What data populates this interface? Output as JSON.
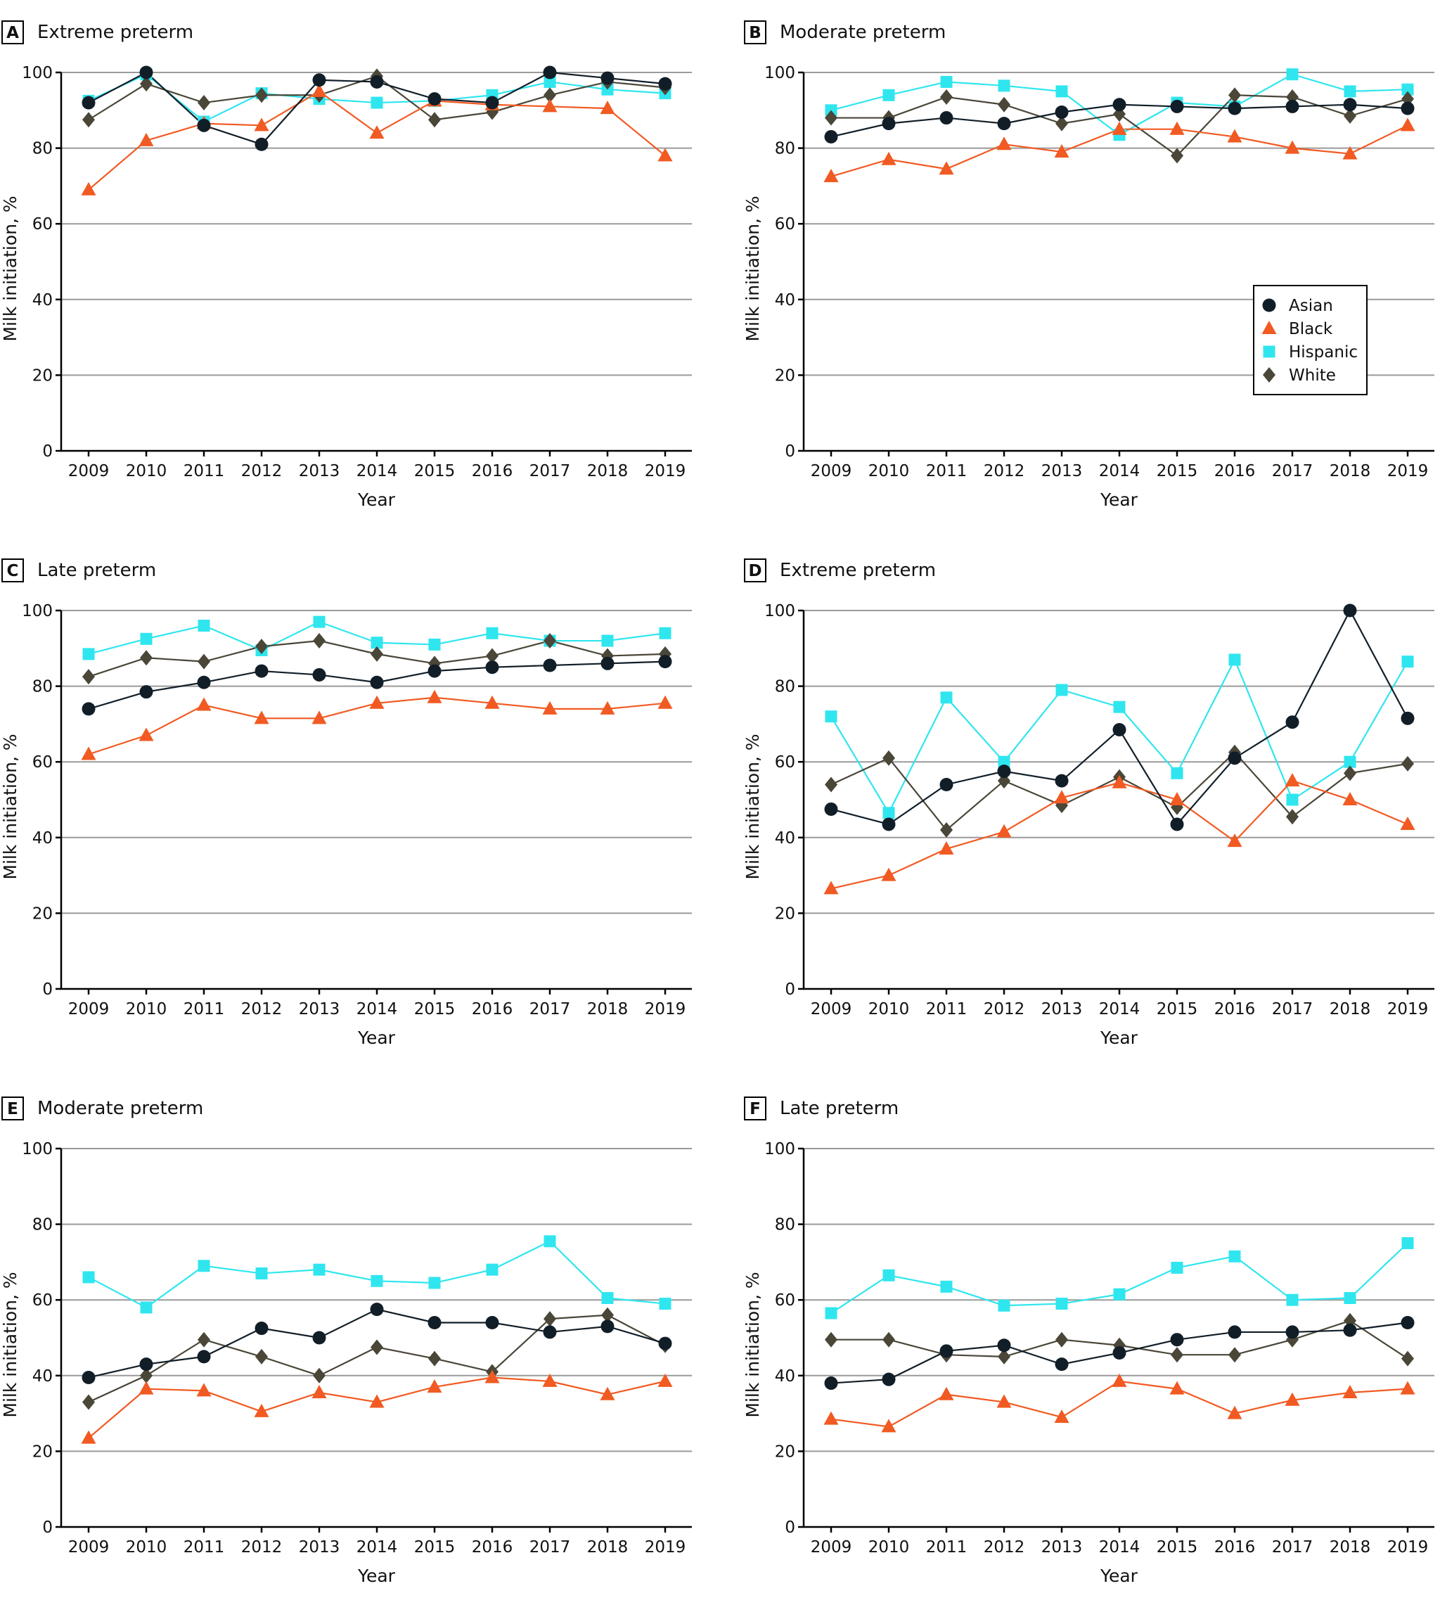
{
  "chart_data": [
    {
      "panel": "A",
      "title": "Extreme preterm",
      "type": "line",
      "xlabel": "Year",
      "ylabel": "Milk initiation, %",
      "ylim": [
        0,
        100
      ],
      "yticks": [
        0,
        20,
        40,
        60,
        80,
        100
      ],
      "categories": [
        2009,
        2010,
        2011,
        2012,
        2013,
        2014,
        2015,
        2016,
        2017,
        2018,
        2019
      ],
      "series": [
        {
          "name": "Asian",
          "values": [
            92,
            100,
            86,
            81,
            98,
            97.5,
            93,
            92,
            100,
            98.5,
            97
          ]
        },
        {
          "name": "Black",
          "values": [
            69,
            82,
            86.5,
            86,
            95,
            84,
            92.5,
            91.5,
            91,
            90.5,
            78
          ]
        },
        {
          "name": "Hispanic",
          "values": [
            92.5,
            99.5,
            87,
            94.5,
            93,
            92,
            92.5,
            94,
            97.5,
            95.5,
            94.5
          ]
        },
        {
          "name": "White",
          "values": [
            87.5,
            97,
            92,
            94,
            94,
            99,
            87.5,
            89.5,
            94,
            97.5,
            96
          ]
        }
      ]
    },
    {
      "panel": "B",
      "title": "Moderate preterm",
      "type": "line",
      "xlabel": "Year",
      "ylabel": "Milk initiation, %",
      "ylim": [
        0,
        100
      ],
      "yticks": [
        0,
        20,
        40,
        60,
        80,
        100
      ],
      "legend": "inside-right",
      "categories": [
        2009,
        2010,
        2011,
        2012,
        2013,
        2014,
        2015,
        2016,
        2017,
        2018,
        2019
      ],
      "series": [
        {
          "name": "Asian",
          "values": [
            83,
            86.5,
            88,
            86.5,
            89.5,
            91.5,
            91,
            90.5,
            91,
            91.5,
            90.5
          ]
        },
        {
          "name": "Black",
          "values": [
            72.5,
            77,
            74.5,
            81,
            79,
            85,
            85,
            83,
            80,
            78.5,
            86
          ]
        },
        {
          "name": "Hispanic",
          "values": [
            90,
            94,
            97.5,
            96.5,
            95,
            83.5,
            92,
            91,
            99.5,
            95,
            95.5
          ]
        },
        {
          "name": "White",
          "values": [
            88,
            88,
            93.5,
            91.5,
            86.5,
            89,
            78,
            94,
            93.5,
            88.5,
            93
          ]
        }
      ]
    },
    {
      "panel": "C",
      "title": "Late preterm",
      "type": "line",
      "xlabel": "Year",
      "ylabel": "Milk initiation, %",
      "ylim": [
        0,
        100
      ],
      "yticks": [
        0,
        20,
        40,
        60,
        80,
        100
      ],
      "categories": [
        2009,
        2010,
        2011,
        2012,
        2013,
        2014,
        2015,
        2016,
        2017,
        2018,
        2019
      ],
      "series": [
        {
          "name": "Asian",
          "values": [
            74,
            78.5,
            81,
            84,
            83,
            81,
            84,
            85,
            85.5,
            86,
            86.5
          ]
        },
        {
          "name": "Black",
          "values": [
            62,
            67,
            75,
            71.5,
            71.5,
            75.5,
            77,
            75.5,
            74,
            74,
            75.5
          ]
        },
        {
          "name": "Hispanic",
          "values": [
            88.5,
            92.5,
            96,
            89.5,
            97,
            91.5,
            91,
            94,
            92,
            92,
            94
          ]
        },
        {
          "name": "White",
          "values": [
            82.5,
            87.5,
            86.5,
            90.5,
            92,
            88.5,
            86,
            88,
            92,
            88,
            88.5
          ]
        }
      ]
    },
    {
      "panel": "D",
      "title": "Extreme preterm",
      "type": "line",
      "xlabel": "Year",
      "ylabel": "Milk initiation, %",
      "ylim": [
        0,
        100
      ],
      "yticks": [
        0,
        20,
        40,
        60,
        80,
        100
      ],
      "categories": [
        2009,
        2010,
        2011,
        2012,
        2013,
        2014,
        2015,
        2016,
        2017,
        2018,
        2019
      ],
      "series": [
        {
          "name": "Asian",
          "values": [
            47.5,
            43.5,
            54,
            57.5,
            55,
            68.5,
            43.5,
            61,
            70.5,
            100,
            71.5
          ]
        },
        {
          "name": "Black",
          "values": [
            26.5,
            30,
            37,
            41.5,
            50.5,
            54.5,
            50,
            39,
            55,
            50,
            43.5
          ]
        },
        {
          "name": "Hispanic",
          "values": [
            72,
            46.5,
            77,
            60,
            79,
            74.5,
            57,
            87,
            50,
            60,
            86.5
          ]
        },
        {
          "name": "White",
          "values": [
            54,
            61,
            42,
            55,
            48.5,
            56,
            48,
            62.5,
            45.5,
            57,
            59.5
          ]
        }
      ]
    },
    {
      "panel": "E",
      "title": "Moderate preterm",
      "type": "line",
      "xlabel": "Year",
      "ylabel": "Milk initiation, %",
      "ylim": [
        0,
        100
      ],
      "yticks": [
        0,
        20,
        40,
        60,
        80,
        100
      ],
      "categories": [
        2009,
        2010,
        2011,
        2012,
        2013,
        2014,
        2015,
        2016,
        2017,
        2018,
        2019
      ],
      "series": [
        {
          "name": "Asian",
          "values": [
            39.5,
            43,
            45,
            52.5,
            50,
            57.5,
            54,
            54,
            51.5,
            53,
            48.5
          ]
        },
        {
          "name": "Black",
          "values": [
            23.5,
            36.5,
            36,
            30.5,
            35.5,
            33,
            37,
            39.5,
            38.5,
            35,
            38.5
          ]
        },
        {
          "name": "Hispanic",
          "values": [
            66,
            58,
            69,
            67,
            68,
            65,
            64.5,
            68,
            75.5,
            60.5,
            59
          ]
        },
        {
          "name": "White",
          "values": [
            33,
            40,
            49.5,
            45,
            40,
            47.5,
            44.5,
            41,
            55,
            56,
            48
          ]
        }
      ]
    },
    {
      "panel": "F",
      "title": "Late preterm",
      "type": "line",
      "xlabel": "Year",
      "ylabel": "Milk initiation, %",
      "ylim": [
        0,
        100
      ],
      "yticks": [
        0,
        20,
        40,
        60,
        80,
        100
      ],
      "categories": [
        2009,
        2010,
        2011,
        2012,
        2013,
        2014,
        2015,
        2016,
        2017,
        2018,
        2019
      ],
      "series": [
        {
          "name": "Asian",
          "values": [
            38,
            39,
            46.5,
            48,
            43,
            46,
            49.5,
            51.5,
            51.5,
            52,
            54
          ]
        },
        {
          "name": "Black",
          "values": [
            28.5,
            26.5,
            35,
            33,
            29,
            38.5,
            36.5,
            30,
            33.5,
            35.5,
            36.5
          ]
        },
        {
          "name": "Hispanic",
          "values": [
            56.5,
            66.5,
            63.5,
            58.5,
            59,
            61.5,
            68.5,
            71.5,
            60,
            60.5,
            75
          ]
        },
        {
          "name": "White",
          "values": [
            49.5,
            49.5,
            45.5,
            45,
            49.5,
            48,
            45.5,
            45.5,
            49.5,
            54.5,
            44.5
          ]
        }
      ]
    }
  ],
  "legend": {
    "entries": [
      {
        "name": "Asian",
        "marker": "circle",
        "color": "#111e28"
      },
      {
        "name": "Black",
        "marker": "triangle",
        "color": "#f15a22"
      },
      {
        "name": "Hispanic",
        "marker": "square",
        "color": "#2fe6ef"
      },
      {
        "name": "White",
        "marker": "diamond",
        "color": "#4a4638"
      }
    ]
  },
  "colors": {
    "Asian": "#111e28",
    "Black": "#f15a22",
    "Hispanic": "#2fe6ef",
    "White": "#4a4638",
    "grid": "#9a9a9a"
  }
}
